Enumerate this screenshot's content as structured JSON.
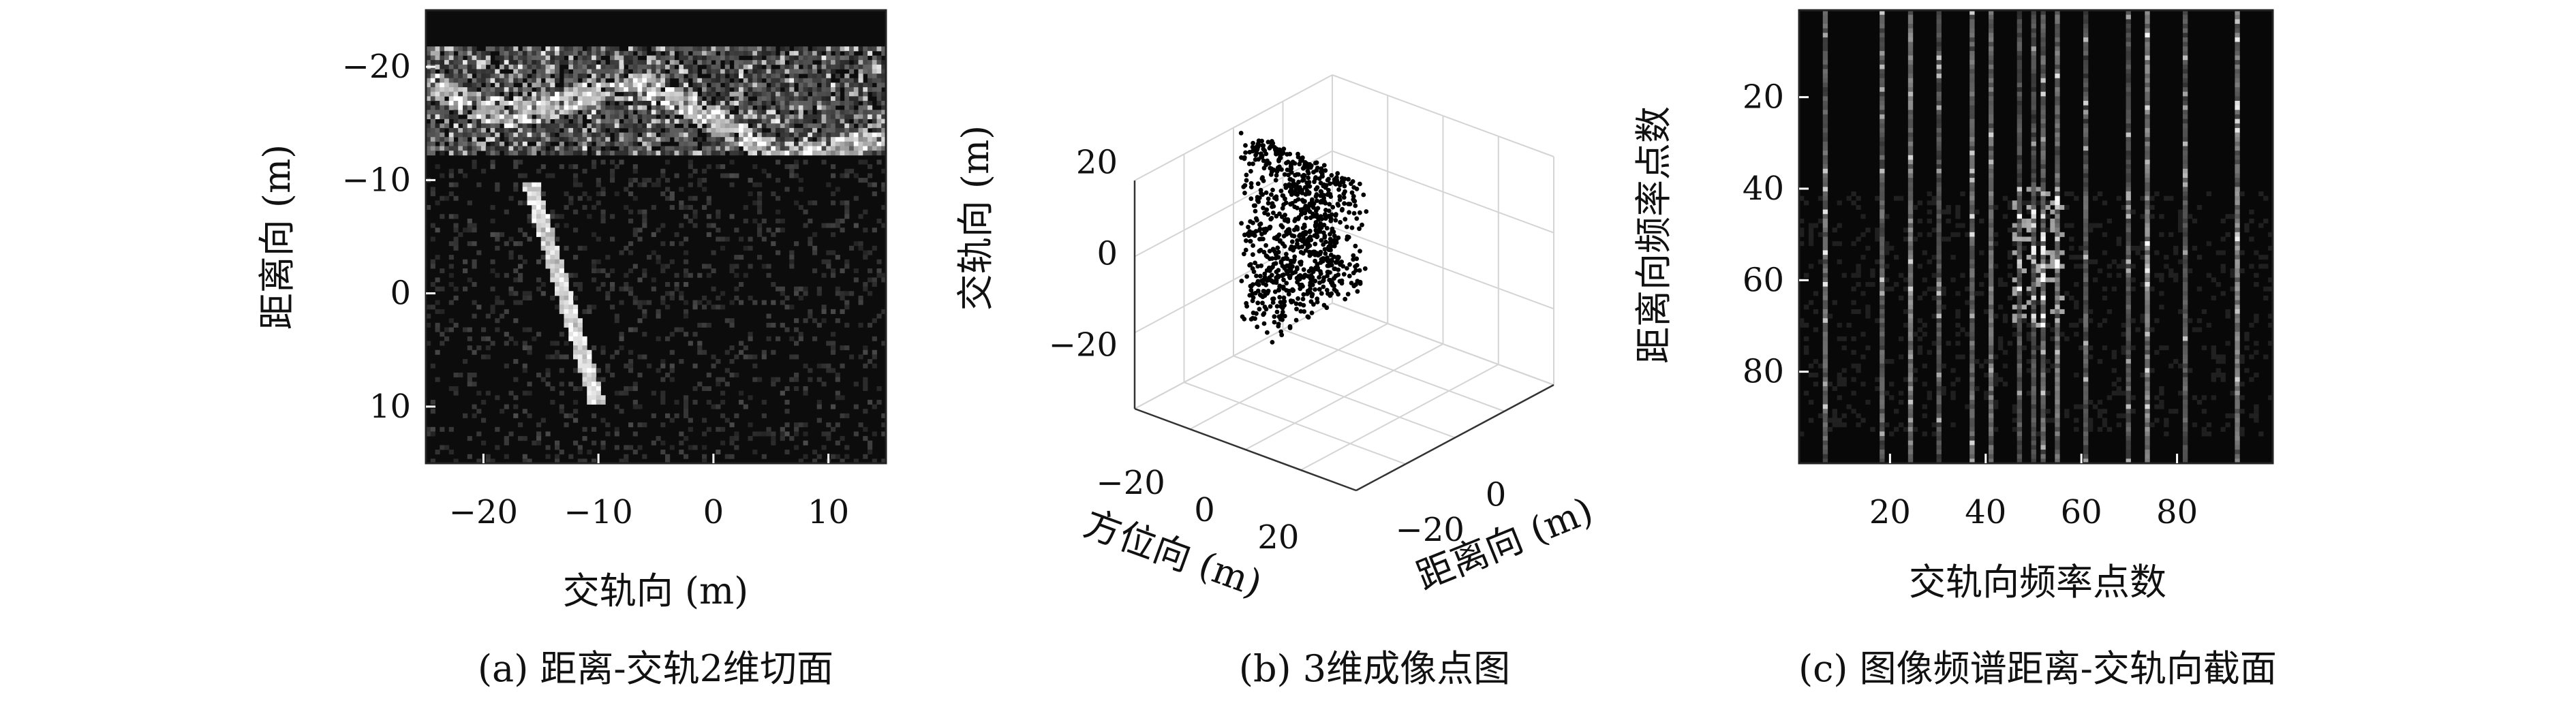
{
  "chart_data": [
    {
      "type": "heatmap",
      "panel": "a",
      "caption": "(a) 距离-交轨2维切面",
      "xlabel": "交轨向 (m)",
      "ylabel": "距离向 (m)",
      "xlim": [
        -25,
        15
      ],
      "ylim": [
        -25,
        15
      ],
      "y_reversed": true,
      "xticks": [
        -20,
        -10,
        0,
        10
      ],
      "xtick_labels": [
        "−20",
        "−10",
        "0",
        "10"
      ],
      "yticks": [
        -20,
        -10,
        0,
        10
      ],
      "ytick_labels": [
        "−20",
        "−10",
        "0",
        "10"
      ],
      "colormap": "gray",
      "features": [
        {
          "kind": "bright-band",
          "y_range": [
            -21,
            -12
          ],
          "note": "wavy bright region"
        },
        {
          "kind": "bright-streak",
          "from": [
            -16,
            -10
          ],
          "to": [
            -10,
            10
          ]
        }
      ]
    },
    {
      "type": "scatter",
      "panel": "b",
      "caption": "(b) 3维成像点图",
      "xlabel": "方位向 (m)",
      "ylabel": "距离向 (m)",
      "zlabel": "交轨向 (m)",
      "xticks": [
        -20,
        0,
        20
      ],
      "xtick_labels": [
        "−20",
        "0",
        "20"
      ],
      "yticks": [
        -20,
        0
      ],
      "ytick_labels": [
        "−20",
        "0"
      ],
      "zticks": [
        -20,
        0,
        20
      ],
      "ztick_labels": [
        "−20",
        "0",
        "20"
      ],
      "xlim": [
        -30,
        30
      ],
      "ylim": [
        -30,
        30
      ],
      "zlim": [
        -25,
        25
      ],
      "point_color": "#000000"
    },
    {
      "type": "heatmap",
      "panel": "c",
      "caption": "(c) 图像频谱距离-交轨向截面",
      "xlabel": "交轨向频率点数",
      "ylabel": "距离向频率点数",
      "xlim": [
        1,
        100
      ],
      "ylim": [
        1,
        100
      ],
      "y_reversed": true,
      "xticks": [
        20,
        40,
        60,
        80
      ],
      "xtick_labels": [
        "20",
        "40",
        "60",
        "80"
      ],
      "yticks": [
        20,
        40,
        60,
        80
      ],
      "ytick_labels": [
        "20",
        "40",
        "60",
        "80"
      ],
      "colormap": "gray",
      "features": [
        {
          "kind": "bright-columns",
          "x_values": [
            6,
            18,
            24,
            30,
            37,
            41,
            47,
            50,
            52,
            55,
            61,
            70,
            74,
            82,
            93
          ]
        },
        {
          "kind": "bright-cluster",
          "x_range": [
            46,
            56
          ],
          "y_range": [
            40,
            70
          ]
        }
      ]
    }
  ]
}
